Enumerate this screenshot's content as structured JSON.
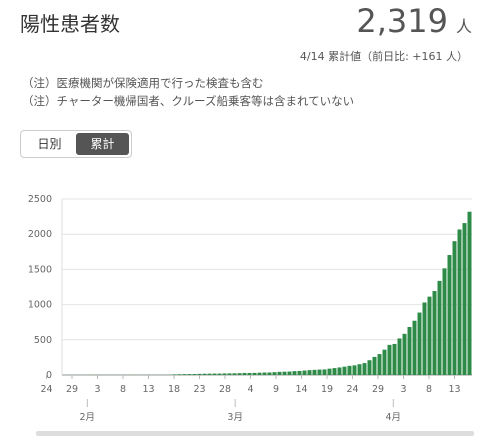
{
  "chart_data": {
    "type": "bar",
    "title": "陽性患者数",
    "total": "2,319",
    "unit": "人",
    "subtitle": "4/14 累計値（前日比: +161 人）",
    "notes": [
      "（注）医療機関が保険適用で行った検査も含む",
      "（注）チャーター機帰国者、クルーズ船乗客等は含まれていない"
    ],
    "toggle": [
      "日別",
      "累計"
    ],
    "categories": [
      "24",
      null,
      null,
      null,
      null,
      "29",
      null,
      null,
      null,
      null,
      "3",
      null,
      null,
      null,
      null,
      "8",
      null,
      null,
      null,
      null,
      "13",
      null,
      null,
      null,
      null,
      "18",
      null,
      null,
      null,
      null,
      "23",
      null,
      null,
      null,
      null,
      "28",
      null,
      null,
      null,
      null,
      "4",
      null,
      null,
      null,
      null,
      "9",
      null,
      null,
      null,
      null,
      "14",
      null,
      null,
      null,
      null,
      "19",
      null,
      null,
      null,
      null,
      "24",
      null,
      null,
      null,
      null,
      "29",
      null,
      null,
      null,
      null,
      "3",
      null,
      null,
      null,
      null,
      "8",
      null,
      null,
      null,
      null,
      "13",
      null
    ],
    "months": [
      "2月",
      "3月",
      "4月"
    ],
    "values": [
      1,
      2,
      2,
      2,
      2,
      3,
      3,
      3,
      3,
      3,
      3,
      3,
      3,
      3,
      3,
      3,
      3,
      3,
      3,
      3,
      3,
      4,
      9,
      11,
      12,
      13,
      14,
      16,
      18,
      19,
      20,
      20,
      22,
      23,
      24,
      26,
      29,
      29,
      30,
      33,
      35,
      36,
      40,
      45,
      47,
      49,
      55,
      58,
      63,
      69,
      73,
      77,
      79,
      90,
      98,
      107,
      118,
      130,
      137,
      153,
      169,
      210,
      257,
      297,
      360,
      428,
      441,
      519,
      585,
      682,
      771,
      887,
      1030,
      1113,
      1193,
      1337,
      1515,
      1704,
      1901,
      2067,
      2158,
      2319
    ],
    "color": "#2e8b47",
    "ylim": [
      0,
      2500
    ],
    "yticks": [
      0,
      500,
      1000,
      1500,
      2000,
      2500
    ],
    "grid": true
  }
}
